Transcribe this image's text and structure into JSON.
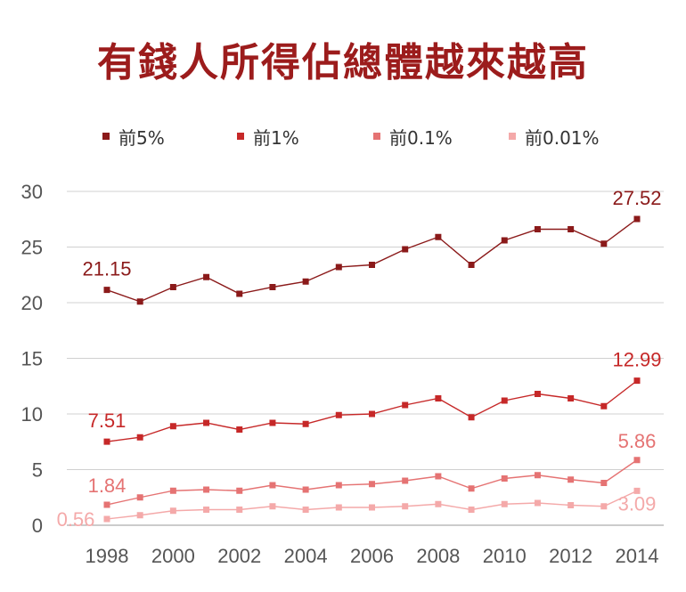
{
  "title": "有錢人所得佔總體越來越高",
  "chart_data": {
    "type": "line",
    "x": [
      1998,
      1999,
      2000,
      2001,
      2002,
      2003,
      2004,
      2005,
      2006,
      2007,
      2008,
      2009,
      2010,
      2011,
      2012,
      2013,
      2014
    ],
    "xticks": [
      1998,
      2000,
      2002,
      2004,
      2006,
      2008,
      2010,
      2012,
      2014
    ],
    "ylim": [
      0,
      30
    ],
    "yticks": [
      0,
      5,
      10,
      15,
      20,
      25,
      30
    ],
    "grid": "horizontal",
    "legend_position": "top",
    "series": [
      {
        "name": "前5%",
        "color": "#8b1a1a",
        "values": [
          21.15,
          20.1,
          21.4,
          22.3,
          20.8,
          21.4,
          21.9,
          23.2,
          23.4,
          24.8,
          25.9,
          23.4,
          25.6,
          26.6,
          26.6,
          25.3,
          27.52
        ],
        "labels": [
          {
            "index": 0,
            "text": "21.15"
          },
          {
            "index": 16,
            "text": "27.52"
          }
        ]
      },
      {
        "name": "前1%",
        "color": "#c62828",
        "values": [
          7.51,
          7.9,
          8.9,
          9.2,
          8.6,
          9.2,
          9.1,
          9.9,
          10.0,
          10.8,
          11.4,
          9.7,
          11.2,
          11.8,
          11.4,
          10.7,
          12.99
        ],
        "labels": [
          {
            "index": 0,
            "text": "7.51"
          },
          {
            "index": 16,
            "text": "12.99"
          }
        ]
      },
      {
        "name": "前0.1%",
        "color": "#e57373",
        "values": [
          1.84,
          2.5,
          3.1,
          3.2,
          3.1,
          3.6,
          3.2,
          3.6,
          3.7,
          4.0,
          4.4,
          3.3,
          4.2,
          4.5,
          4.1,
          3.8,
          5.86
        ],
        "labels": [
          {
            "index": 0,
            "text": "1.84"
          },
          {
            "index": 16,
            "text": "5.86"
          }
        ]
      },
      {
        "name": "前0.01%",
        "color": "#f4a9a9",
        "values": [
          0.56,
          0.9,
          1.3,
          1.4,
          1.4,
          1.7,
          1.4,
          1.6,
          1.6,
          1.7,
          1.9,
          1.4,
          1.9,
          2.0,
          1.8,
          1.7,
          3.09
        ],
        "labels": [
          {
            "index": 0,
            "text": "0.56"
          },
          {
            "index": 16,
            "text": "3.09"
          }
        ]
      }
    ]
  }
}
